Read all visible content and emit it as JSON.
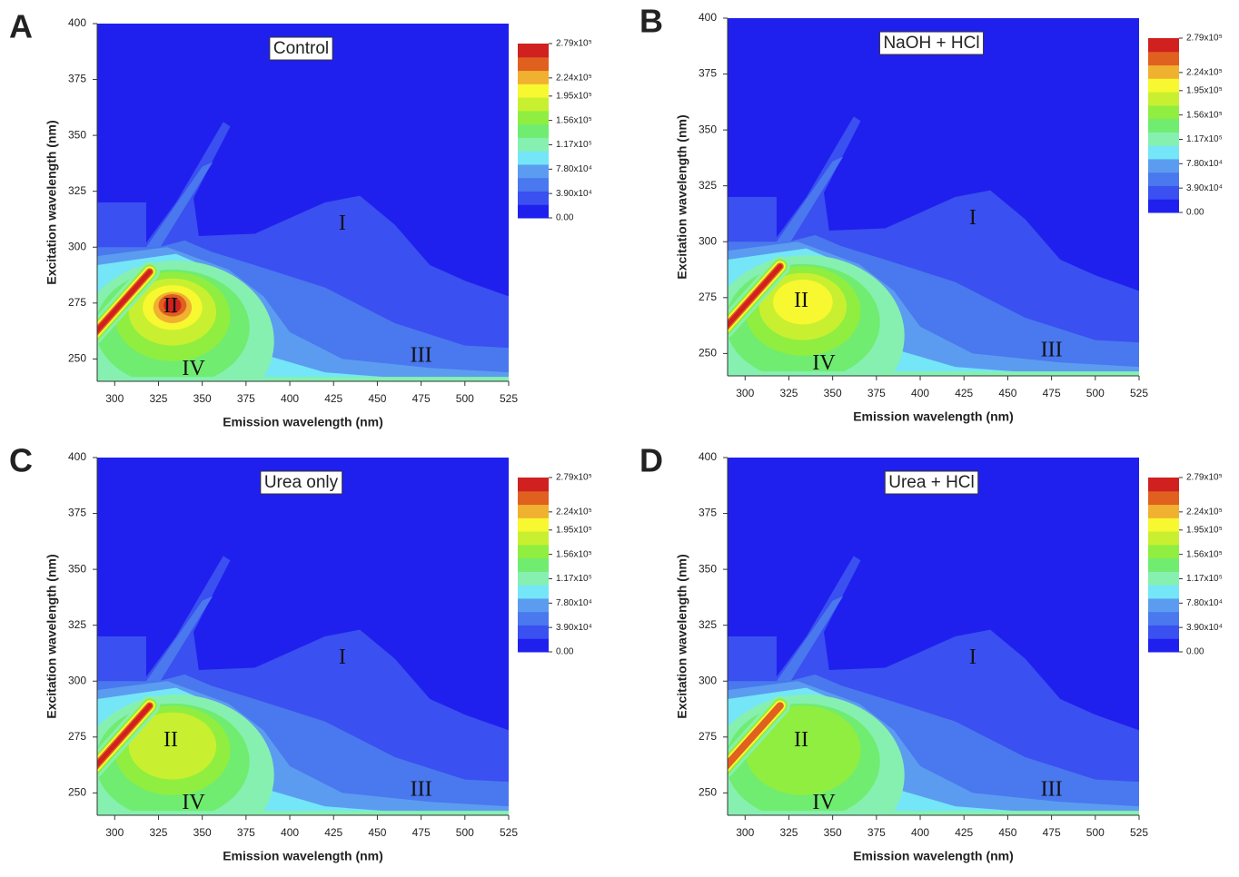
{
  "chart_data": [
    {
      "type": "contour",
      "panel": "A",
      "title": "Control",
      "xlabel": "Emission wavelength (nm)",
      "ylabel": "Excitation wavelength (nm)",
      "xlim": [
        290,
        525
      ],
      "ylim": [
        240,
        400
      ],
      "xticks": [
        300,
        325,
        350,
        375,
        400,
        425,
        450,
        475,
        500,
        525
      ],
      "yticks": [
        250,
        275,
        300,
        325,
        350,
        375,
        400
      ],
      "colorbar_ticks": [
        {
          "value": 279000,
          "label": "2.79x10⁵"
        },
        {
          "value": 224000,
          "label": "2.24x10⁵"
        },
        {
          "value": 195000,
          "label": "1.95x10⁵"
        },
        {
          "value": 156000,
          "label": "1.56x10⁵"
        },
        {
          "value": 117000,
          "label": "1.17x10⁵"
        },
        {
          "value": 78000,
          "label": "7.80x10⁴"
        },
        {
          "value": 39000,
          "label": "3.90x10⁴"
        },
        {
          "value": 0,
          "label": "0.00"
        }
      ],
      "colormap": [
        "#2020ee",
        "#3a50f0",
        "#4a78ee",
        "#5b9cf0",
        "#74e6f8",
        "#86f0b0",
        "#70ec70",
        "#90ee40",
        "#c8f030",
        "#f8f830",
        "#f0b030",
        "#e06020",
        "#d02020"
      ],
      "annotations": [
        "I",
        "II",
        "III",
        "IV"
      ]
    },
    {
      "type": "contour",
      "panel": "B",
      "title": "NaOH + HCl",
      "xlabel": "Emission wavelength (nm)",
      "ylabel": "Excitation wavelength (nm)",
      "xlim": [
        290,
        525
      ],
      "ylim": [
        240,
        400
      ],
      "xticks": [
        300,
        325,
        350,
        375,
        400,
        425,
        450,
        475,
        500,
        525
      ],
      "yticks": [
        250,
        275,
        300,
        325,
        350,
        375,
        400
      ],
      "colorbar_ticks": [
        {
          "value": 279000,
          "label": "2.79x10⁵"
        },
        {
          "value": 224000,
          "label": "2.24x10⁵"
        },
        {
          "value": 195000,
          "label": "1.95x10⁵"
        },
        {
          "value": 156000,
          "label": "1.56x10⁵"
        },
        {
          "value": 117000,
          "label": "1.17x10⁵"
        },
        {
          "value": 78000,
          "label": "7.80x10⁴"
        },
        {
          "value": 39000,
          "label": "3.90x10⁴"
        },
        {
          "value": 0,
          "label": "0.00"
        }
      ],
      "colormap": [
        "#2020ee",
        "#3a50f0",
        "#4a78ee",
        "#5b9cf0",
        "#74e6f8",
        "#86f0b0",
        "#70ec70",
        "#90ee40",
        "#c8f030",
        "#f8f830",
        "#f0b030",
        "#e06020",
        "#d02020"
      ],
      "annotations": [
        "I",
        "II",
        "III",
        "IV"
      ]
    },
    {
      "type": "contour",
      "panel": "C",
      "title": "Urea only",
      "xlabel": "Emission wavelength (nm)",
      "ylabel": "Excitation wavelength (nm)",
      "xlim": [
        290,
        525
      ],
      "ylim": [
        240,
        400
      ],
      "xticks": [
        300,
        325,
        350,
        375,
        400,
        425,
        450,
        475,
        500,
        525
      ],
      "yticks": [
        250,
        275,
        300,
        325,
        350,
        375,
        400
      ],
      "colorbar_ticks": [
        {
          "value": 279000,
          "label": "2.79x10⁵"
        },
        {
          "value": 224000,
          "label": "2.24x10⁵"
        },
        {
          "value": 195000,
          "label": "1.95x10⁵"
        },
        {
          "value": 156000,
          "label": "1.56x10⁵"
        },
        {
          "value": 117000,
          "label": "1.17x10⁵"
        },
        {
          "value": 78000,
          "label": "7.80x10⁴"
        },
        {
          "value": 39000,
          "label": "3.90x10⁴"
        },
        {
          "value": 0,
          "label": "0.00"
        }
      ],
      "colormap": [
        "#2020ee",
        "#3a50f0",
        "#4a78ee",
        "#5b9cf0",
        "#74e6f8",
        "#86f0b0",
        "#70ec70",
        "#90ee40",
        "#c8f030",
        "#f8f830",
        "#f0b030",
        "#e06020",
        "#d02020"
      ],
      "annotations": [
        "I",
        "II",
        "III",
        "IV"
      ]
    },
    {
      "type": "contour",
      "panel": "D",
      "title": "Urea + HCl",
      "xlabel": "Emission wavelength (nm)",
      "ylabel": "Excitation wavelength (nm)",
      "xlim": [
        290,
        525
      ],
      "ylim": [
        240,
        400
      ],
      "xticks": [
        300,
        325,
        350,
        375,
        400,
        425,
        450,
        475,
        500,
        525
      ],
      "yticks": [
        250,
        275,
        300,
        325,
        350,
        375,
        400
      ],
      "colorbar_ticks": [
        {
          "value": 279000,
          "label": "2.79x10⁵"
        },
        {
          "value": 224000,
          "label": "2.24x10⁵"
        },
        {
          "value": 195000,
          "label": "1.95x10⁵"
        },
        {
          "value": 156000,
          "label": "1.56x10⁵"
        },
        {
          "value": 117000,
          "label": "1.17x10⁵"
        },
        {
          "value": 78000,
          "label": "7.80x10⁴"
        },
        {
          "value": 39000,
          "label": "3.90x10⁴"
        },
        {
          "value": 0,
          "label": "0.00"
        }
      ],
      "colormap": [
        "#2020ee",
        "#3a50f0",
        "#4a78ee",
        "#5b9cf0",
        "#74e6f8",
        "#86f0b0",
        "#70ec70",
        "#90ee40",
        "#c8f030",
        "#f8f830",
        "#f0b030",
        "#e06020",
        "#d02020"
      ],
      "annotations": [
        "I",
        "II",
        "III",
        "IV"
      ]
    }
  ]
}
